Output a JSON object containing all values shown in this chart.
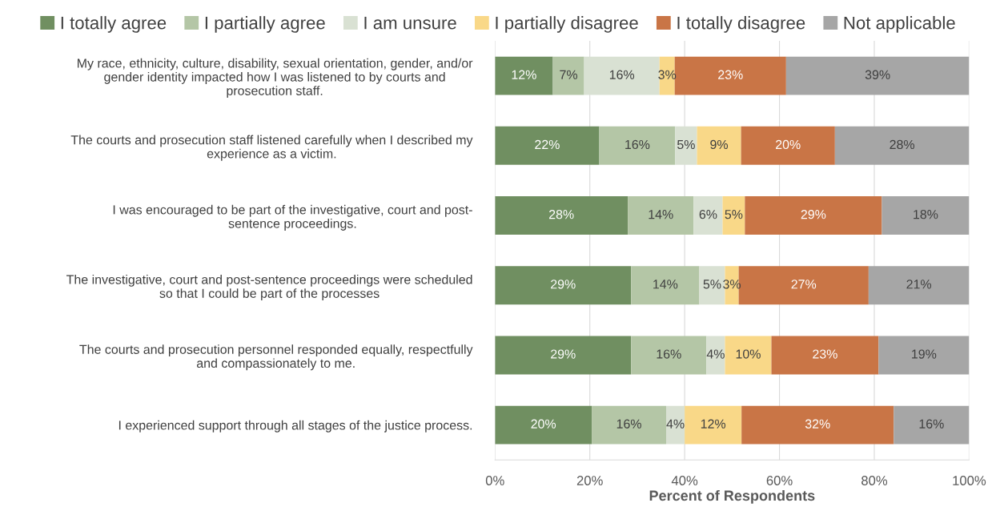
{
  "chart_data": {
    "type": "bar",
    "orientation": "horizontal",
    "stacked": true,
    "xlabel": "Percent of Respondents",
    "categories": [
      "My race, ethnicity, culture, disability, sexual orientation, gender, and/or\ngender identity impacted how I was listened to by courts and\nprosecution staff.",
      "The courts and prosecution staff listened carefully when I described my\nexperience as a victim.",
      "I was encouraged to be part of the investigative, court and post-\nsentence proceedings.",
      "The investigative, court and post-sentence proceedings were scheduled\nso that I could be part of the processes",
      "The courts and prosecution personnel responded equally, respectfully\nand compassionately to me.",
      "I experienced support through all stages of the justice process."
    ],
    "series": [
      {
        "name": "I totally agree",
        "color": "#708f61",
        "values": [
          12.2,
          22.0,
          28.0,
          28.7,
          28.7,
          20.4
        ],
        "value_labels": [
          "12%",
          "22%",
          "28%",
          "29%",
          "29%",
          "20%"
        ]
      },
      {
        "name": "I partially agree",
        "color": "#b4c6a6",
        "values": [
          6.6,
          16.0,
          13.9,
          14.4,
          15.9,
          15.7
        ],
        "value_labels": [
          "7%",
          "16%",
          "14%",
          "14%",
          "16%",
          "16%"
        ]
      },
      {
        "name": "I am unsure",
        "color": "#d9e1d3",
        "values": [
          15.9,
          4.6,
          6.1,
          5.4,
          3.9,
          3.9
        ],
        "value_labels": [
          "16%",
          "5%",
          "6%",
          "5%",
          "4%",
          "4%"
        ]
      },
      {
        "name": "I partially disagree",
        "color": "#f9d888",
        "values": [
          3.2,
          9.3,
          4.7,
          2.9,
          9.8,
          12.0
        ],
        "value_labels": [
          "3%",
          "9%",
          "5%",
          "3%",
          "10%",
          "12%"
        ]
      },
      {
        "name": "I totally disagree",
        "color": "#c97546",
        "values": [
          23.5,
          19.8,
          28.9,
          27.4,
          22.6,
          32.1
        ],
        "value_labels": [
          "23%",
          "20%",
          "29%",
          "27%",
          "23%",
          "32%"
        ]
      },
      {
        "name": "Not applicable",
        "color": "#a6a6a6",
        "values": [
          38.6,
          28.3,
          18.4,
          21.2,
          19.1,
          15.9
        ],
        "value_labels": [
          "39%",
          "28%",
          "18%",
          "21%",
          "19%",
          "16%"
        ]
      }
    ],
    "xlim": [
      0,
      100
    ],
    "xticks": [
      {
        "value": 0,
        "label": "0%"
      },
      {
        "value": 20,
        "label": "20%"
      },
      {
        "value": 40,
        "label": "40%"
      },
      {
        "value": 60,
        "label": "60%"
      },
      {
        "value": 80,
        "label": "80%"
      },
      {
        "value": 100,
        "label": "100%"
      }
    ],
    "grid": "x",
    "legend": "top"
  }
}
